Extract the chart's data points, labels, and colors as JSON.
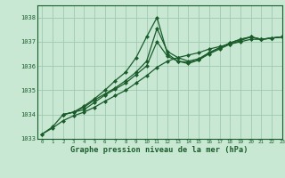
{
  "background_color": "#c8e8d4",
  "grid_color": "#a0c8b0",
  "line_color": "#1a5c2a",
  "title": "Graphe pression niveau de la mer (hPa)",
  "xlim": [
    -0.5,
    23
  ],
  "ylim": [
    1033.0,
    1038.5
  ],
  "yticks": [
    1033,
    1034,
    1035,
    1036,
    1037,
    1038
  ],
  "xticks": [
    0,
    1,
    2,
    3,
    4,
    5,
    6,
    7,
    8,
    9,
    10,
    11,
    12,
    13,
    14,
    15,
    16,
    17,
    18,
    19,
    20,
    21,
    22,
    23
  ],
  "series1": {
    "x": [
      0,
      1,
      2,
      3,
      4,
      5,
      6,
      7,
      8,
      9,
      10,
      11,
      12,
      13,
      14,
      15,
      16,
      17,
      18,
      19,
      20,
      21,
      22,
      23
    ],
    "y": [
      1033.2,
      1033.5,
      1034.0,
      1034.1,
      1034.35,
      1034.65,
      1035.0,
      1035.4,
      1035.75,
      1036.35,
      1037.2,
      1038.0,
      1036.5,
      1036.2,
      1036.15,
      1036.25,
      1036.55,
      1036.75,
      1036.95,
      1037.1,
      1037.2,
      1037.1,
      1037.15,
      1037.2
    ]
  },
  "series2": {
    "x": [
      0,
      1,
      2,
      3,
      4,
      5,
      6,
      7,
      8,
      9,
      10,
      11,
      12,
      13,
      14,
      15,
      16,
      17,
      18,
      19,
      20,
      21,
      22,
      23
    ],
    "y": [
      1033.2,
      1033.45,
      1033.75,
      1033.95,
      1034.1,
      1034.3,
      1034.55,
      1034.78,
      1035.0,
      1035.3,
      1035.6,
      1035.95,
      1036.2,
      1036.35,
      1036.45,
      1036.55,
      1036.7,
      1036.8,
      1036.9,
      1037.0,
      1037.1,
      1037.1,
      1037.15,
      1037.2
    ]
  },
  "series3": {
    "x": [
      2,
      3,
      4,
      5,
      6,
      7,
      8,
      9,
      10,
      11,
      12,
      13,
      14,
      15,
      16,
      17,
      18,
      19,
      20,
      21,
      22,
      23
    ],
    "y": [
      1034.0,
      1034.1,
      1034.3,
      1034.6,
      1034.85,
      1035.1,
      1035.4,
      1035.75,
      1036.2,
      1037.55,
      1036.6,
      1036.35,
      1036.2,
      1036.3,
      1036.55,
      1036.75,
      1036.95,
      1037.1,
      1037.2,
      1037.1,
      1037.15,
      1037.2
    ]
  },
  "series4": {
    "x": [
      2,
      3,
      4,
      5,
      6,
      7,
      8,
      9,
      10,
      11,
      12,
      13,
      14,
      15,
      16,
      17,
      18,
      19,
      20,
      21,
      22,
      23
    ],
    "y": [
      1034.0,
      1034.1,
      1034.2,
      1034.5,
      1034.8,
      1035.05,
      1035.3,
      1035.65,
      1036.0,
      1037.0,
      1036.4,
      1036.2,
      1036.1,
      1036.25,
      1036.5,
      1036.7,
      1036.9,
      1037.05,
      1037.2,
      1037.1,
      1037.15,
      1037.2
    ]
  }
}
